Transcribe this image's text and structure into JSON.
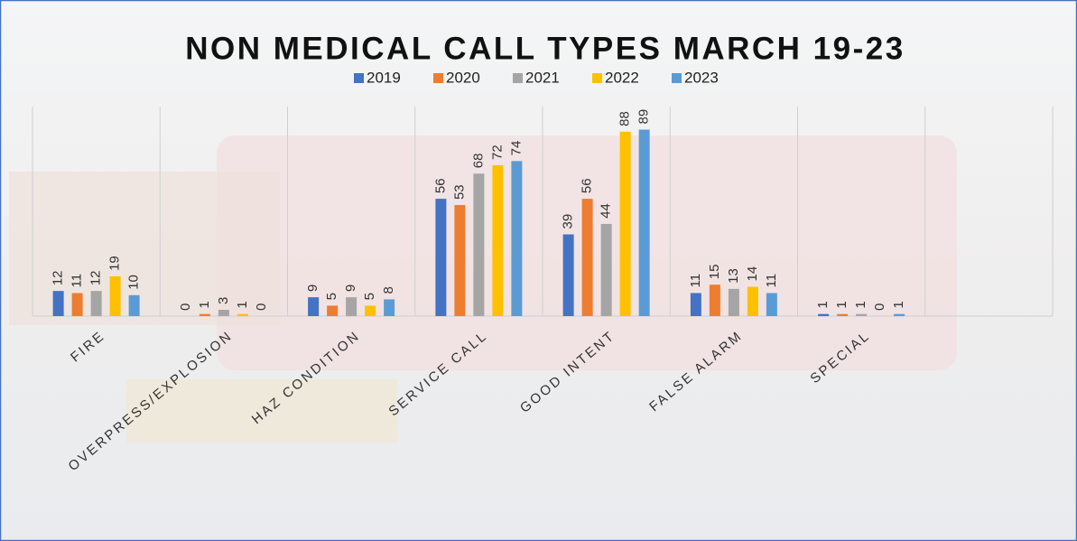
{
  "chart_data": {
    "type": "bar",
    "title": "NON MEDICAL CALL TYPES MARCH 19-23",
    "categories": [
      "FIRE",
      "OVERPRESS/EXPLOSION",
      "HAZ CONDITION",
      "SERVICE CALL",
      "GOOD INTENT",
      "FALSE ALARM",
      "SPECIAL",
      null
    ],
    "series": [
      {
        "name": "2019",
        "color": "#4472c4",
        "values": [
          12,
          0,
          9,
          56,
          39,
          11,
          1,
          null
        ]
      },
      {
        "name": "2020",
        "color": "#ed7d31",
        "values": [
          11,
          1,
          5,
          53,
          56,
          15,
          1,
          null
        ]
      },
      {
        "name": "2021",
        "color": "#a5a5a5",
        "values": [
          12,
          3,
          9,
          68,
          44,
          13,
          1,
          null
        ]
      },
      {
        "name": "2022",
        "color": "#ffc000",
        "values": [
          19,
          1,
          5,
          72,
          88,
          14,
          0,
          null
        ]
      },
      {
        "name": "2023",
        "color": "#5b9bd5",
        "values": [
          10,
          0,
          8,
          74,
          89,
          11,
          1,
          null
        ]
      }
    ],
    "ylim": [
      0,
      100
    ],
    "grid": true,
    "legend": "top"
  }
}
